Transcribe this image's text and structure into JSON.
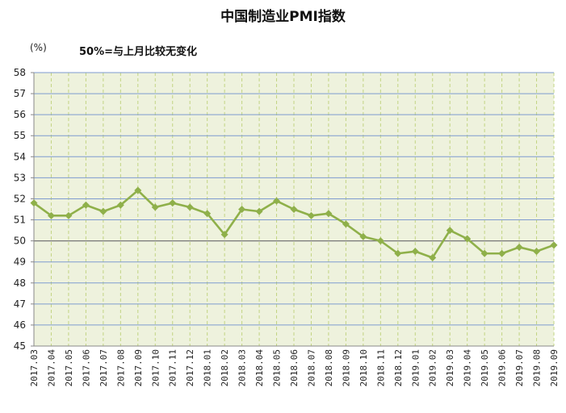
{
  "chart_data": {
    "type": "line",
    "title": "中国制造业PMI指数",
    "unit_label": "(%)",
    "note": "50%=与上月比较无变化",
    "ylim": [
      45,
      58
    ],
    "y_ticks": [
      45,
      46,
      47,
      48,
      49,
      50,
      51,
      52,
      53,
      54,
      55,
      56,
      57,
      58
    ],
    "reference_line": 50,
    "grid": true,
    "legend": "none",
    "colors": {
      "plot_background": "#eef2dd",
      "horizontal_grid": "#7f9bd0",
      "vertical_grid": "#c2d482",
      "reference_line": "#777777",
      "line": "#8fb04a",
      "marker": "#8fb04a"
    },
    "categories": [
      "2017.03",
      "2017.04",
      "2017.05",
      "2017.06",
      "2017.07",
      "2017.08",
      "2017.09",
      "2017.10",
      "2017.11",
      "2017.12",
      "2018.01",
      "2018.02",
      "2018.03",
      "2018.04",
      "2018.05",
      "2018.06",
      "2018.07",
      "2018.08",
      "2018.09",
      "2018.10",
      "2018.11",
      "2018.12",
      "2019.01",
      "2019.02",
      "2019.03",
      "2019.04",
      "2019.05",
      "2019.06",
      "2019.07",
      "2019.08",
      "2019.09"
    ],
    "series": [
      {
        "values": [
          51.8,
          51.2,
          51.2,
          51.7,
          51.4,
          51.7,
          52.4,
          51.6,
          51.8,
          51.6,
          51.3,
          50.3,
          51.5,
          51.4,
          51.9,
          51.5,
          51.2,
          51.3,
          50.8,
          50.2,
          50.0,
          49.4,
          49.5,
          49.2,
          50.5,
          50.1,
          49.4,
          49.4,
          49.7,
          49.5,
          49.8
        ]
      }
    ]
  }
}
